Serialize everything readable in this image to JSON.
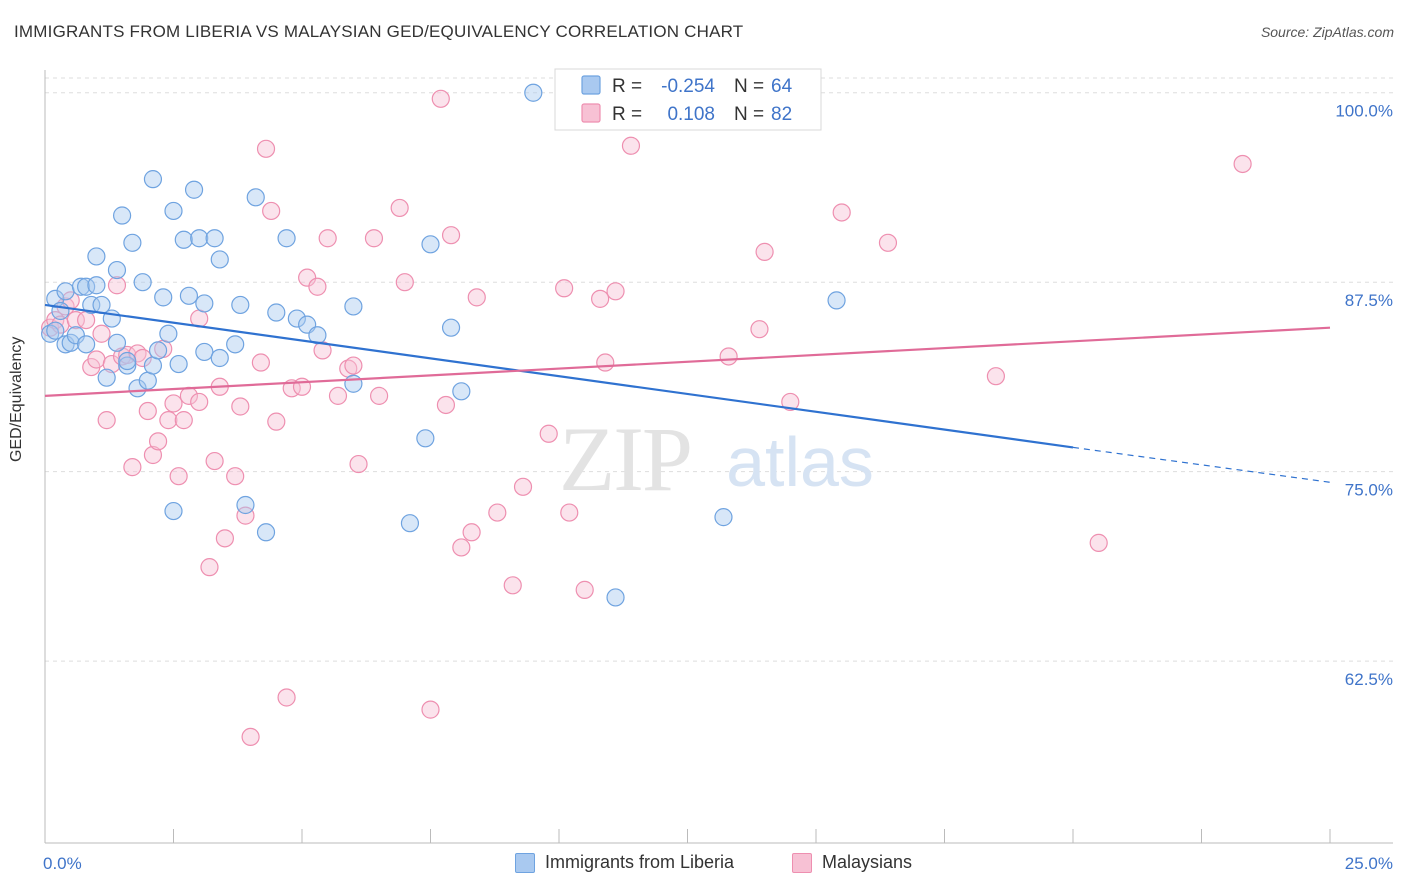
{
  "title": "IMMIGRANTS FROM LIBERIA VS MALAYSIAN GED/EQUIVALENCY CORRELATION CHART",
  "source": "Source: ZipAtlas.com",
  "colors": {
    "blue": "#6fa3e0",
    "blue_fill": "#a9c9f0",
    "blue_line": "#2f72d0",
    "pink": "#ee8fb0",
    "pink_fill": "#f7c1d4",
    "pink_line": "#e06b98",
    "tick_label": "#3f74c9",
    "grid": "#dddddd"
  },
  "legend_top": {
    "rows": [
      {
        "r_label": "R =",
        "r_value": "-0.254",
        "n_label": "N =",
        "n_value": "64",
        "series": "blue"
      },
      {
        "r_label": "R =",
        "r_value": "0.108",
        "n_label": "N =",
        "n_value": "82",
        "series": "pink"
      }
    ]
  },
  "legend_bottom": [
    {
      "label": "Immigrants from Liberia",
      "series": "blue"
    },
    {
      "label": "Malaysians",
      "series": "pink"
    }
  ],
  "watermark": {
    "zip": "ZIP",
    "atlas": "atlas"
  },
  "chart_data": {
    "type": "scatter",
    "title": "IMMIGRANTS FROM LIBERIA VS MALAYSIAN GED/EQUIVALENCY CORRELATION CHART",
    "xlabel": "",
    "ylabel": "GED/Equivalency",
    "xlim": [
      0,
      25
    ],
    "ylim": [
      50.5,
      101.5
    ],
    "x_tick_labels": [
      "0.0%",
      "25.0%"
    ],
    "y_ticks": [
      62.5,
      75.0,
      87.5,
      100.0
    ],
    "y_tick_labels": [
      "62.5%",
      "75.0%",
      "87.5%",
      "100.0%"
    ],
    "grid": true,
    "series": [
      {
        "name": "Immigrants from Liberia",
        "color": "blue",
        "trend": {
          "x_start": 0,
          "y_start": 86.0,
          "x_solid_end": 20,
          "y_solid_end": 76.6,
          "x_dash_end": 25,
          "y_dash_end": 74.3
        },
        "points": [
          [
            0.1,
            84.1
          ],
          [
            0.2,
            84.3
          ],
          [
            0.2,
            86.4
          ],
          [
            0.3,
            85.6
          ],
          [
            0.4,
            83.4
          ],
          [
            0.4,
            86.9
          ],
          [
            0.5,
            83.5
          ],
          [
            0.6,
            84.0
          ],
          [
            0.7,
            87.2
          ],
          [
            0.8,
            87.2
          ],
          [
            0.8,
            83.4
          ],
          [
            0.9,
            86.0
          ],
          [
            1.0,
            87.3
          ],
          [
            1.0,
            89.2
          ],
          [
            1.1,
            86.0
          ],
          [
            1.2,
            81.2
          ],
          [
            1.3,
            85.1
          ],
          [
            1.4,
            83.5
          ],
          [
            1.4,
            88.3
          ],
          [
            1.5,
            91.9
          ],
          [
            1.6,
            82.0
          ],
          [
            1.6,
            82.3
          ],
          [
            1.7,
            90.1
          ],
          [
            1.8,
            80.5
          ],
          [
            1.9,
            87.5
          ],
          [
            2.0,
            81.0
          ],
          [
            2.1,
            94.3
          ],
          [
            2.1,
            82.0
          ],
          [
            2.2,
            83.0
          ],
          [
            2.3,
            86.5
          ],
          [
            2.4,
            84.1
          ],
          [
            2.5,
            72.4
          ],
          [
            2.5,
            92.2
          ],
          [
            2.6,
            82.1
          ],
          [
            2.7,
            90.3
          ],
          [
            2.8,
            86.6
          ],
          [
            2.9,
            93.6
          ],
          [
            3.0,
            90.4
          ],
          [
            3.1,
            86.1
          ],
          [
            3.1,
            82.9
          ],
          [
            3.3,
            90.4
          ],
          [
            3.4,
            82.5
          ],
          [
            3.4,
            89.0
          ],
          [
            3.7,
            83.4
          ],
          [
            3.8,
            86.0
          ],
          [
            3.9,
            72.8
          ],
          [
            4.1,
            93.1
          ],
          [
            4.3,
            71.0
          ],
          [
            4.5,
            85.5
          ],
          [
            4.7,
            90.4
          ],
          [
            4.9,
            85.1
          ],
          [
            5.1,
            84.7
          ],
          [
            5.3,
            84.0
          ],
          [
            6.0,
            85.9
          ],
          [
            6.0,
            80.8
          ],
          [
            7.1,
            71.6
          ],
          [
            7.4,
            77.2
          ],
          [
            7.5,
            90.0
          ],
          [
            7.9,
            84.5
          ],
          [
            8.1,
            80.3
          ],
          [
            9.5,
            100.0
          ],
          [
            11.1,
            66.7
          ],
          [
            13.2,
            72.0
          ],
          [
            15.4,
            86.3
          ]
        ]
      },
      {
        "name": "Malaysians",
        "color": "pink",
        "trend": {
          "x_start": 0,
          "y_start": 80.0,
          "x_end": 25,
          "y_end": 84.5
        },
        "points": [
          [
            0.1,
            84.5
          ],
          [
            0.2,
            85.0
          ],
          [
            0.3,
            84.7
          ],
          [
            0.4,
            85.9
          ],
          [
            0.5,
            86.3
          ],
          [
            0.6,
            85.0
          ],
          [
            0.8,
            85.0
          ],
          [
            0.9,
            81.9
          ],
          [
            1.0,
            82.4
          ],
          [
            1.1,
            84.1
          ],
          [
            1.2,
            78.4
          ],
          [
            1.3,
            82.1
          ],
          [
            1.4,
            87.3
          ],
          [
            1.5,
            82.6
          ],
          [
            1.6,
            82.7
          ],
          [
            1.7,
            75.3
          ],
          [
            1.8,
            82.8
          ],
          [
            1.9,
            82.5
          ],
          [
            2.0,
            79.0
          ],
          [
            2.1,
            76.1
          ],
          [
            2.2,
            77.0
          ],
          [
            2.3,
            83.1
          ],
          [
            2.4,
            78.4
          ],
          [
            2.5,
            79.5
          ],
          [
            2.6,
            74.7
          ],
          [
            2.7,
            78.4
          ],
          [
            2.8,
            80.0
          ],
          [
            3.0,
            79.6
          ],
          [
            3.0,
            85.1
          ],
          [
            3.2,
            68.7
          ],
          [
            3.3,
            75.7
          ],
          [
            3.4,
            80.6
          ],
          [
            3.5,
            70.6
          ],
          [
            3.7,
            74.7
          ],
          [
            3.8,
            79.3
          ],
          [
            3.9,
            72.1
          ],
          [
            4.0,
            57.5
          ],
          [
            4.2,
            82.2
          ],
          [
            4.3,
            96.3
          ],
          [
            4.4,
            92.2
          ],
          [
            4.5,
            78.3
          ],
          [
            4.7,
            60.1
          ],
          [
            4.8,
            80.5
          ],
          [
            5.0,
            80.6
          ],
          [
            5.1,
            87.8
          ],
          [
            5.3,
            87.2
          ],
          [
            5.4,
            83.0
          ],
          [
            5.5,
            90.4
          ],
          [
            5.7,
            80.0
          ],
          [
            5.9,
            81.8
          ],
          [
            6.0,
            82.0
          ],
          [
            6.1,
            75.5
          ],
          [
            6.4,
            90.4
          ],
          [
            6.5,
            80.0
          ],
          [
            6.9,
            92.4
          ],
          [
            7.0,
            87.5
          ],
          [
            7.5,
            59.3
          ],
          [
            7.7,
            99.6
          ],
          [
            7.8,
            79.4
          ],
          [
            7.9,
            90.6
          ],
          [
            8.1,
            70.0
          ],
          [
            8.3,
            71.0
          ],
          [
            8.4,
            86.5
          ],
          [
            8.8,
            72.3
          ],
          [
            9.1,
            67.5
          ],
          [
            9.3,
            74.0
          ],
          [
            9.8,
            77.5
          ],
          [
            10.1,
            87.1
          ],
          [
            10.2,
            72.3
          ],
          [
            10.5,
            67.2
          ],
          [
            10.8,
            86.4
          ],
          [
            10.9,
            82.2
          ],
          [
            11.1,
            86.9
          ],
          [
            11.4,
            96.5
          ],
          [
            13.3,
            82.6
          ],
          [
            13.9,
            84.4
          ],
          [
            14.0,
            89.5
          ],
          [
            14.5,
            79.6
          ],
          [
            15.5,
            92.1
          ],
          [
            16.4,
            90.1
          ],
          [
            18.5,
            81.3
          ],
          [
            20.5,
            70.3
          ],
          [
            23.3,
            95.3
          ]
        ]
      }
    ]
  }
}
